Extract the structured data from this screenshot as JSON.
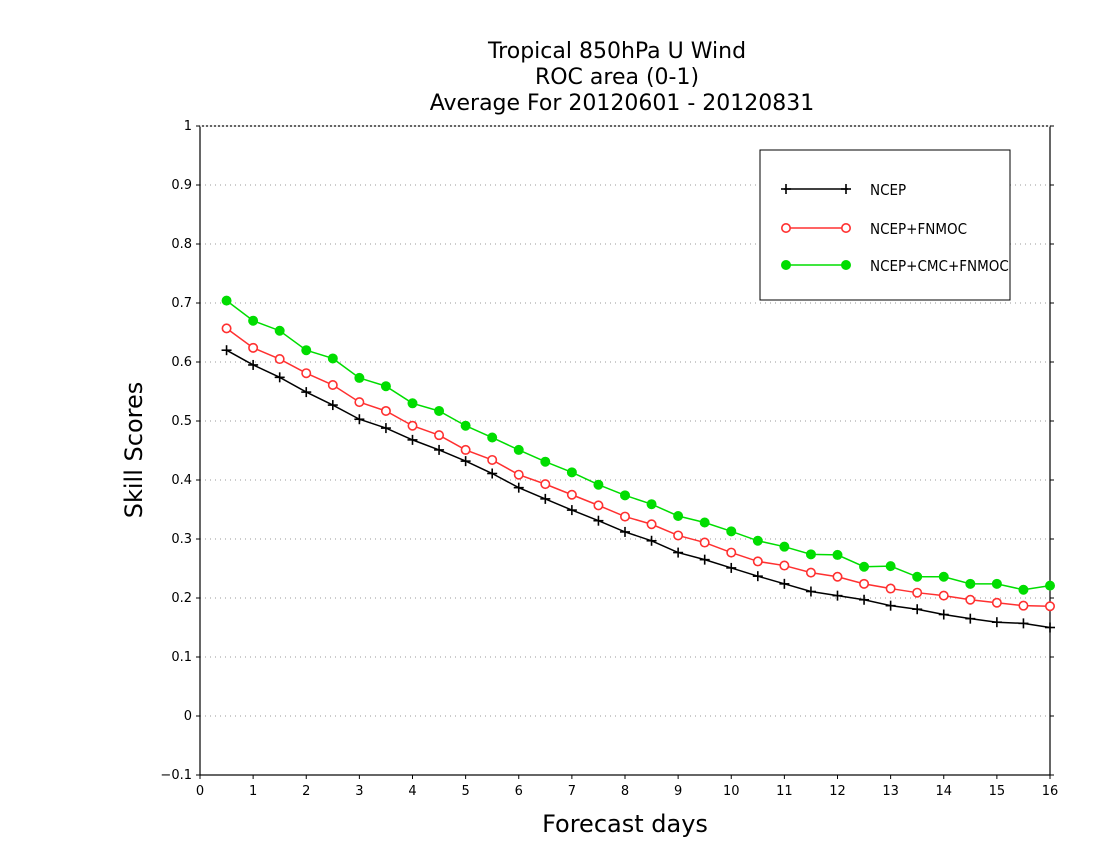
{
  "chart_data": {
    "type": "line",
    "title_lines": [
      "Tropical 850hPa U Wind",
      "ROC area (0-1)",
      "Average For 20120601 - 20120831"
    ],
    "xlabel": "Forecast days",
    "ylabel": "Skill Scores",
    "xlim": [
      0,
      16
    ],
    "ylim": [
      -0.1,
      1
    ],
    "x_ticks": [
      "0",
      "1",
      "2",
      "3",
      "4",
      "5",
      "6",
      "7",
      "8",
      "9",
      "10",
      "11",
      "12",
      "13",
      "14",
      "15",
      "16"
    ],
    "y_ticks": [
      "−0.1",
      "0",
      "0.1",
      "0.2",
      "0.3",
      "0.4",
      "0.5",
      "0.6",
      "0.7",
      "0.8",
      "0.9",
      "1"
    ],
    "y_tick_values": [
      -0.1,
      0,
      0.1,
      0.2,
      0.3,
      0.4,
      0.5,
      0.6,
      0.7,
      0.8,
      0.9,
      1
    ],
    "grid": true,
    "legend_position": "top-right",
    "x": [
      0.5,
      1,
      1.5,
      2,
      2.5,
      3,
      3.5,
      4,
      4.5,
      5,
      5.5,
      6,
      6.5,
      7,
      7.5,
      8,
      8.5,
      9,
      9.5,
      10,
      10.5,
      11,
      11.5,
      12,
      12.5,
      13,
      13.5,
      14,
      14.5,
      15,
      15.5,
      16
    ],
    "series": [
      {
        "name": "NCEP",
        "color": "#000000",
        "marker": "plus",
        "values": [
          0.62,
          0.595,
          0.574,
          0.549,
          0.527,
          0.503,
          0.488,
          0.468,
          0.451,
          0.432,
          0.411,
          0.387,
          0.368,
          0.349,
          0.331,
          0.312,
          0.297,
          0.277,
          0.265,
          0.251,
          0.237,
          0.224,
          0.211,
          0.204,
          0.197,
          0.187,
          0.181,
          0.172,
          0.165,
          0.159,
          0.157,
          0.15
        ]
      },
      {
        "name": "NCEP+FNMOC",
        "color": "#ff3030",
        "marker": "open-circle",
        "values": [
          0.657,
          0.624,
          0.605,
          0.581,
          0.561,
          0.532,
          0.517,
          0.492,
          0.476,
          0.451,
          0.434,
          0.409,
          0.393,
          0.375,
          0.357,
          0.338,
          0.325,
          0.306,
          0.294,
          0.277,
          0.262,
          0.255,
          0.243,
          0.236,
          0.224,
          0.216,
          0.209,
          0.204,
          0.197,
          0.192,
          0.187,
          0.186
        ]
      },
      {
        "name": "NCEP+CMC+FNMOC",
        "color": "#00dd00",
        "marker": "filled-circle",
        "values": [
          0.704,
          0.67,
          0.653,
          0.62,
          0.606,
          0.573,
          0.559,
          0.53,
          0.517,
          0.492,
          0.472,
          0.451,
          0.431,
          0.413,
          0.392,
          0.374,
          0.359,
          0.339,
          0.328,
          0.313,
          0.297,
          0.287,
          0.274,
          0.273,
          0.253,
          0.254,
          0.236,
          0.236,
          0.224,
          0.224,
          0.214,
          0.221
        ]
      }
    ]
  }
}
